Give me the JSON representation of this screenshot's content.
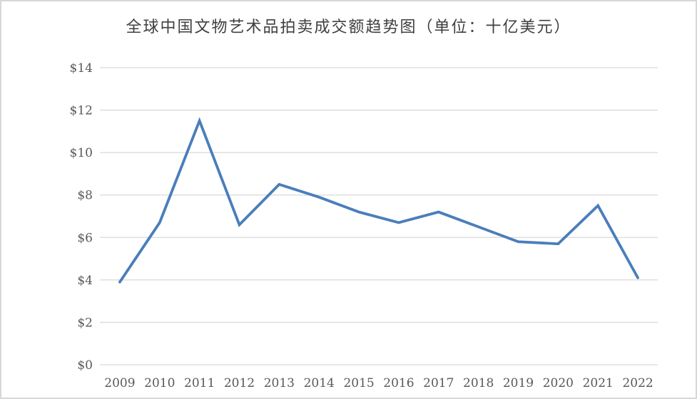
{
  "window": {
    "background_color": "#ffffff",
    "border_color": "#d7d7d7"
  },
  "chart_data": {
    "type": "line",
    "title": "全球中国文物艺术品拍卖成交额趋势图（单位：十亿美元）",
    "categories": [
      "2009",
      "2010",
      "2011",
      "2012",
      "2013",
      "2014",
      "2015",
      "2016",
      "2017",
      "2018",
      "2019",
      "2020",
      "2021",
      "2022"
    ],
    "series": [
      {
        "name": "拍卖成交额",
        "values": [
          3.9,
          6.7,
          11.5,
          6.6,
          8.5,
          7.9,
          7.2,
          6.7,
          7.2,
          6.5,
          5.8,
          5.7,
          7.5,
          4.1
        ],
        "color": "#4a7ebb"
      }
    ],
    "xlabel": "",
    "ylabel": "",
    "ylim": [
      0,
      14
    ],
    "ytick_step": 2,
    "ytick_labels": [
      "$0",
      "$2",
      "$4",
      "$6",
      "$8",
      "$10",
      "$12",
      "$14"
    ],
    "grid": true,
    "legend": "none",
    "gridline_color": "#d9d9d9",
    "tick_label_color": "#595959",
    "title_color": "#3f3f3f"
  }
}
